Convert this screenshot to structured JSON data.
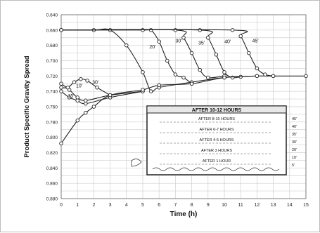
{
  "chart_data": {
    "type": "line",
    "title": "",
    "xlabel": "Time (h)",
    "ylabel": "Product Specific Gravity Spread",
    "xlim": [
      0,
      15
    ],
    "ylim": [
      0.88,
      0.64
    ],
    "x_ticks": [
      "0",
      "1",
      "2",
      "3",
      "4",
      "5",
      "6",
      "7",
      "8",
      "9",
      "10",
      "11",
      "12",
      "13",
      "14",
      "15"
    ],
    "y_ticks": [
      "0.640",
      "0.660",
      "0.680",
      "0.700",
      "0.720",
      "0.740",
      "0.760",
      "0.780",
      "0.800",
      "0.820",
      "0.840",
      "0.860",
      "0.880"
    ],
    "grid": true,
    "series": [
      {
        "name": "",
        "label": "20'",
        "points": [
          [
            0,
            0.66
          ],
          [
            2,
            0.66
          ],
          [
            3,
            0.66
          ],
          [
            4,
            0.68
          ],
          [
            5,
            0.715
          ],
          [
            5.5,
            0.74
          ],
          [
            6,
            0.735
          ],
          [
            8,
            0.728
          ],
          [
            10,
            0.722
          ],
          [
            12,
            0.72
          ],
          [
            13,
            0.72
          ],
          [
            15,
            0.72
          ]
        ]
      },
      {
        "name": "",
        "label": "30'",
        "points": [
          [
            0,
            0.66
          ],
          [
            5,
            0.66
          ],
          [
            5.5,
            0.66
          ],
          [
            6,
            0.675
          ],
          [
            6.5,
            0.7
          ],
          [
            7,
            0.718
          ],
          [
            7.5,
            0.722
          ],
          [
            8,
            0.73
          ]
        ]
      },
      {
        "name": "",
        "label": "35'",
        "points": [
          [
            0,
            0.66
          ],
          [
            7,
            0.66
          ],
          [
            7.5,
            0.67
          ],
          [
            8,
            0.69
          ],
          [
            8.5,
            0.712
          ],
          [
            9,
            0.722
          ],
          [
            10,
            0.72
          ]
        ]
      },
      {
        "name": "",
        "label": "40'",
        "points": [
          [
            0,
            0.66
          ],
          [
            8.5,
            0.66
          ],
          [
            9,
            0.67
          ],
          [
            9.5,
            0.692
          ],
          [
            10,
            0.715
          ],
          [
            10.5,
            0.722
          ],
          [
            11,
            0.721
          ]
        ]
      },
      {
        "name": "",
        "label": "45'",
        "points": [
          [
            0,
            0.66
          ],
          [
            10.5,
            0.66
          ],
          [
            11,
            0.668
          ],
          [
            11.5,
            0.69
          ],
          [
            12,
            0.71
          ],
          [
            12.5,
            0.718
          ],
          [
            13,
            0.72
          ]
        ]
      },
      {
        "name": "",
        "label": "10'",
        "points": [
          [
            0,
            0.73
          ],
          [
            0.5,
            0.738
          ],
          [
            1,
            0.748
          ],
          [
            1.5,
            0.752
          ],
          [
            3,
            0.745
          ],
          [
            5,
            0.74
          ]
        ]
      },
      {
        "name": "",
        "label": "15'",
        "points": [
          [
            0,
            0.735
          ],
          [
            0.4,
            0.735
          ],
          [
            0.8,
            0.728
          ],
          [
            1.2,
            0.724
          ],
          [
            1.6,
            0.726
          ],
          [
            2.2,
            0.735
          ],
          [
            3,
            0.745
          ]
        ]
      },
      {
        "name": "",
        "label": "",
        "points": [
          [
            0,
            0.74
          ],
          [
            0.5,
            0.748
          ],
          [
            1,
            0.752
          ],
          [
            1.5,
            0.756
          ],
          [
            3,
            0.748
          ],
          [
            5,
            0.74
          ]
        ]
      },
      {
        "name": "",
        "label": "",
        "points": [
          [
            0,
            0.808
          ],
          [
            1,
            0.778
          ],
          [
            1.5,
            0.768
          ],
          [
            2,
            0.76
          ],
          [
            3,
            0.745
          ],
          [
            5,
            0.738
          ],
          [
            6,
            0.732
          ],
          [
            8,
            0.73
          ],
          [
            10,
            0.722
          ],
          [
            12,
            0.72
          ]
        ]
      }
    ],
    "annotations": [
      {
        "text": "20'",
        "x": 5.6,
        "y": 0.684
      },
      {
        "text": "30'",
        "x": 7.2,
        "y": 0.676
      },
      {
        "text": "35'",
        "x": 8.6,
        "y": 0.679
      },
      {
        "text": "40'",
        "x": 10.2,
        "y": 0.677
      },
      {
        "text": "45'",
        "x": 11.9,
        "y": 0.676
      },
      {
        "text": "10'",
        "x": 1.1,
        "y": 0.735
      },
      {
        "text": "15'",
        "x": 0.6,
        "y": 0.748
      },
      {
        "text": "30'",
        "x": 2.1,
        "y": 0.73
      }
    ],
    "inset": {
      "title": "AFTER 10-12 HOURS",
      "labels": [
        "AFTER 8-10 HOURS",
        "AFTER 6-7 HOURS",
        "AFTER 4-5 HOURS",
        "AFTER 3 HOURS",
        "AFTER 1 HOUR"
      ],
      "depth_labels": [
        "45'",
        "40'",
        "35'",
        "30'",
        "20'",
        "10'",
        "5'"
      ]
    }
  }
}
